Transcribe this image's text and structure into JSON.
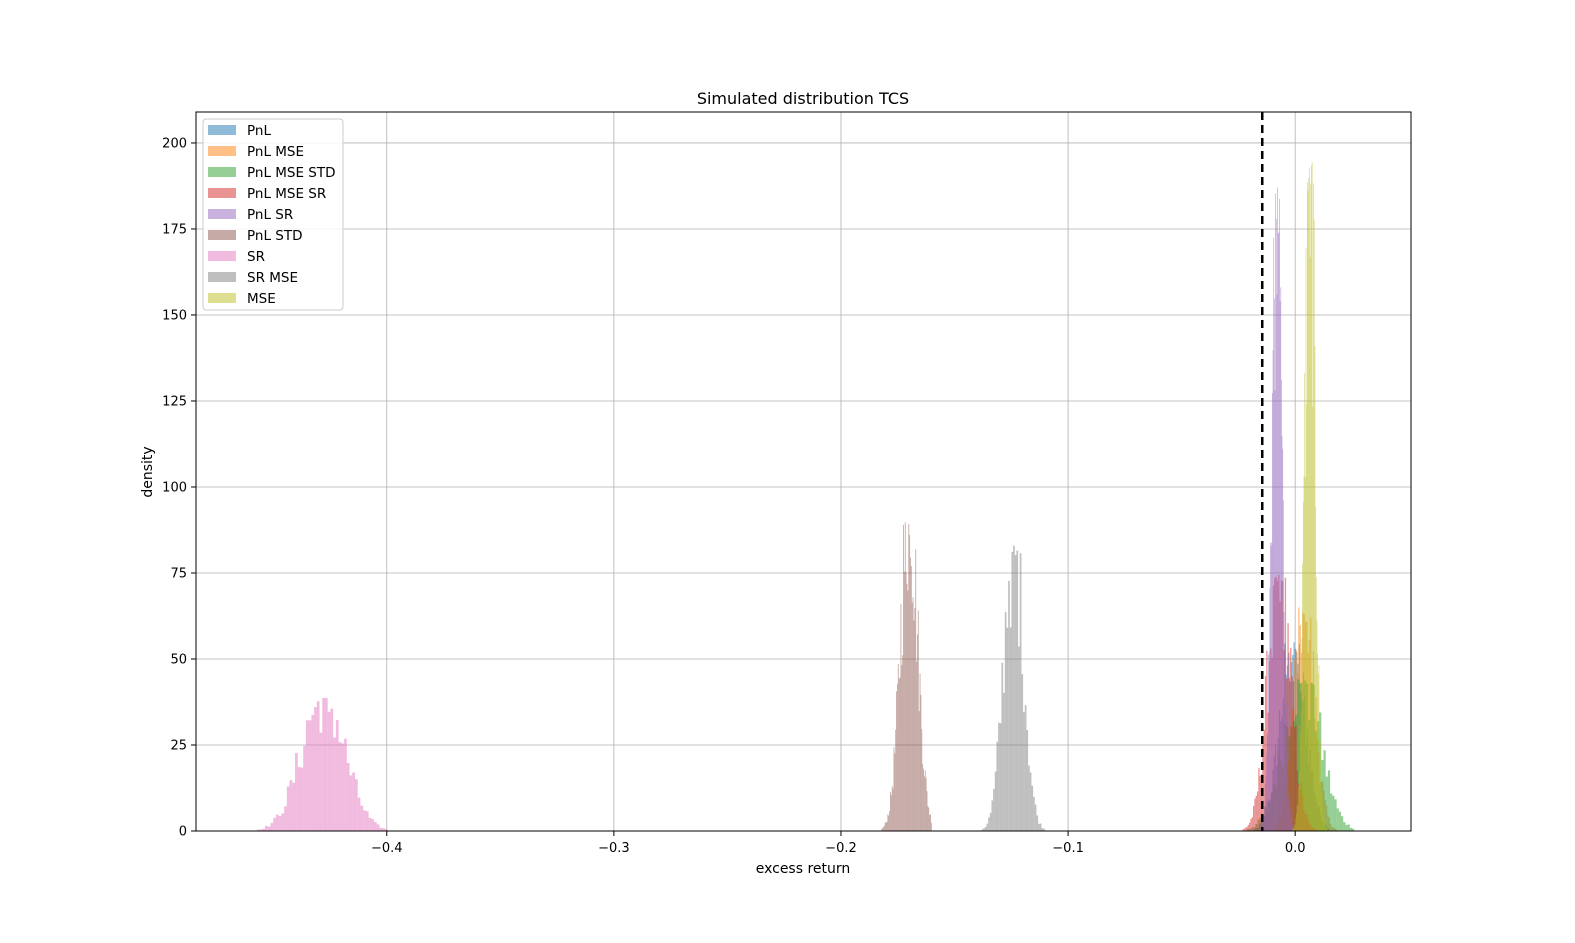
{
  "chart_data": {
    "type": "histogram",
    "title": "Simulated distribution TCS",
    "xlabel": "excess return",
    "ylabel": "density",
    "xlim": [
      -0.484,
      0.051
    ],
    "ylim": [
      0,
      209
    ],
    "x_ticks": [
      -0.4,
      -0.3,
      -0.2,
      -0.1,
      0.0
    ],
    "x_tick_labels": [
      "−0.4",
      "−0.3",
      "−0.2",
      "−0.1",
      "0.0"
    ],
    "y_ticks": [
      0,
      25,
      50,
      75,
      100,
      125,
      150,
      175,
      200
    ],
    "y_tick_labels": [
      "0",
      "25",
      "50",
      "75",
      "100",
      "125",
      "150",
      "175",
      "200"
    ],
    "grid": true,
    "legend_position": "top-left",
    "reference_line": {
      "x": -0.0145,
      "style": "dashed",
      "color": "#000000"
    },
    "series": [
      {
        "name": "PnL",
        "color": "#1f77b4",
        "mean": -0.001,
        "std": 0.0055,
        "peak": 55,
        "range": [
          -0.02,
          0.015
        ]
      },
      {
        "name": "PnL MSE",
        "color": "#ff7f0e",
        "mean": 0.004,
        "std": 0.0045,
        "peak": 65,
        "range": [
          -0.015,
          0.02
        ]
      },
      {
        "name": "PnL MSE STD",
        "color": "#2ca02c",
        "mean": 0.003,
        "std": 0.008,
        "peak": 45,
        "range": [
          -0.032,
          0.026
        ]
      },
      {
        "name": "PnL MSE SR",
        "color": "#d62728",
        "mean": -0.007,
        "std": 0.005,
        "peak": 75,
        "range": [
          -0.025,
          0.01
        ]
      },
      {
        "name": "PnL SR",
        "color": "#9467bd",
        "mean": -0.008,
        "std": 0.0022,
        "peak": 188,
        "range": [
          -0.017,
          0.0
        ]
      },
      {
        "name": "PnL STD",
        "color": "#8c564b",
        "mean": -0.17,
        "std": 0.0038,
        "peak": 92,
        "range": [
          -0.183,
          -0.16
        ]
      },
      {
        "name": "SR",
        "color": "#e377c2",
        "mean": -0.428,
        "std": 0.0095,
        "peak": 39,
        "range": [
          -0.462,
          -0.39
        ]
      },
      {
        "name": "SR MSE",
        "color": "#7f7f7f",
        "mean": -0.124,
        "std": 0.0043,
        "peak": 84,
        "range": [
          -0.144,
          -0.1
        ]
      },
      {
        "name": "MSE",
        "color": "#bcbd22",
        "mean": 0.0065,
        "std": 0.0022,
        "peak": 198,
        "range": [
          -0.002,
          0.016
        ]
      }
    ]
  }
}
